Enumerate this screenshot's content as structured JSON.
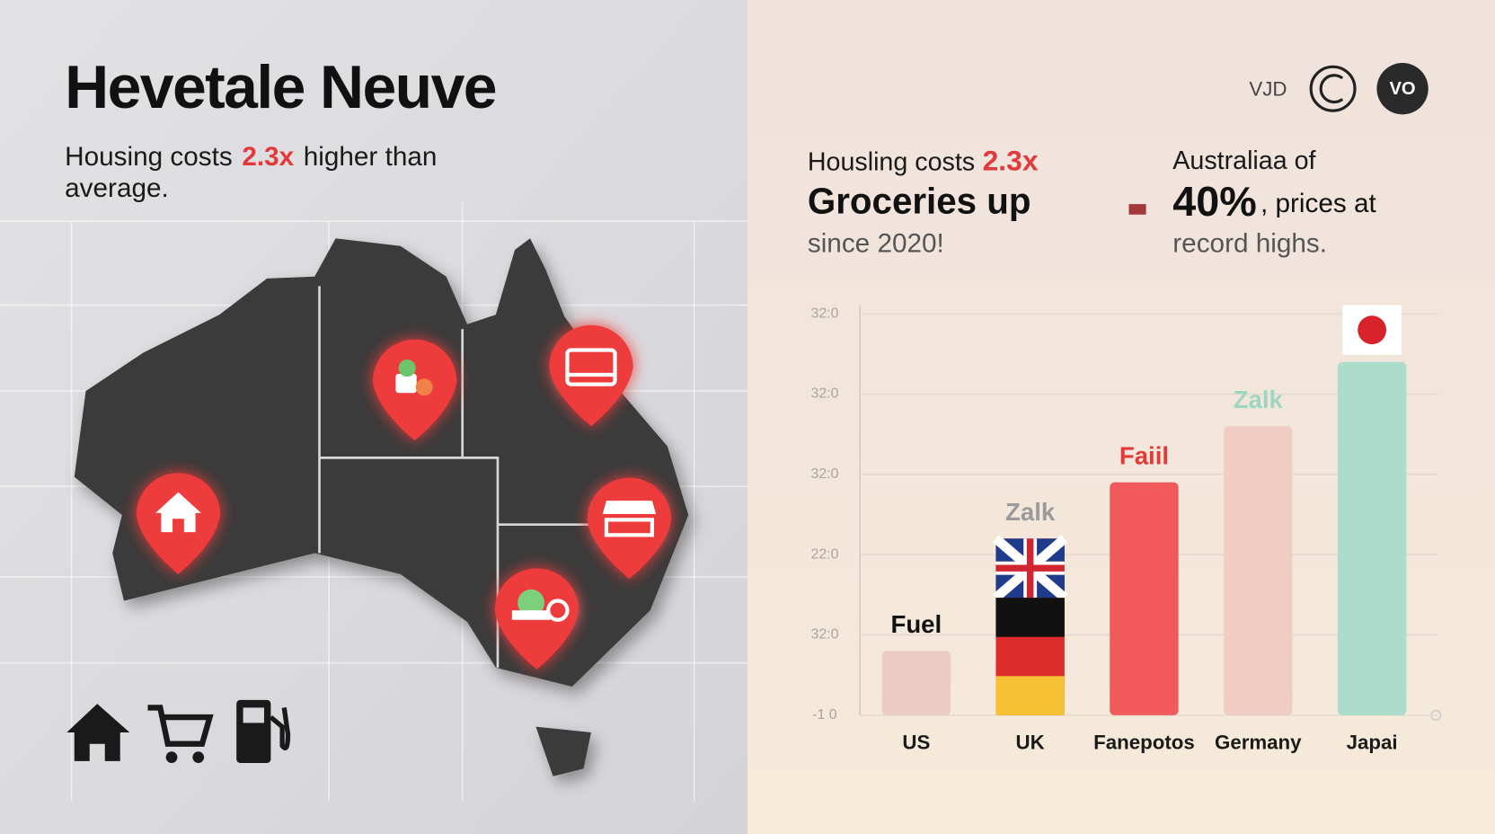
{
  "header": {
    "title": "Hevetale Neuve",
    "subtitle_start": "Housing costs",
    "subtitle_accent": "2.3x",
    "subtitle_end": "higher than",
    "subtitle_line2": "average."
  },
  "top_bar": {
    "text": "VJD",
    "badge": "VO"
  },
  "highlights": {
    "left": {
      "line1": "Housling costs",
      "line1_accent": "2.3x",
      "line2": "Groceries up",
      "line3": "since 2020!"
    },
    "right": {
      "line1": "Australiaa of",
      "line2_big": "40%",
      "line2_rest": ", prices at",
      "line3": "record highs."
    }
  },
  "chart_data": {
    "type": "bar",
    "categories": [
      "US",
      "UK",
      "Fanepotos",
      "Germany",
      "Japai"
    ],
    "values": [
      0.8,
      2.2,
      2.9,
      3.6,
      4.4
    ],
    "colors": [
      "#eccbc2",
      "#dd2a2a",
      "#f2595a",
      "#efcdc2",
      "#acdccb"
    ],
    "bar_labels": [
      "Fuel",
      "Zalk",
      "Faiil",
      "Zalk",
      null
    ],
    "bar_label_colors": [
      "#111111",
      "#9a9a9a",
      "#e23a3a",
      "#9fd6c2",
      null
    ],
    "ylim": [
      0,
      5
    ],
    "yticks": [
      {
        "value": 0,
        "label": "-1 0"
      },
      {
        "value": 1,
        "label": "32:0"
      },
      {
        "value": 2,
        "label": "22:0"
      },
      {
        "value": 3,
        "label": "32:0"
      },
      {
        "value": 4,
        "label": "32:0"
      },
      {
        "value": 5,
        "label": "32:0"
      }
    ],
    "grid": true
  }
}
